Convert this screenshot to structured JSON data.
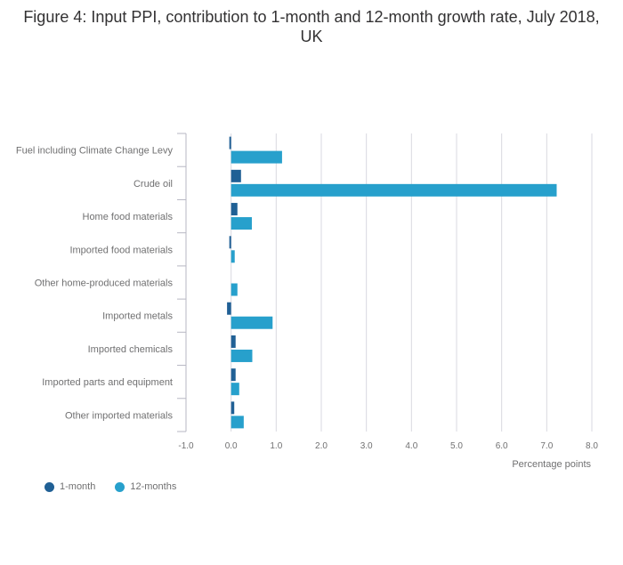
{
  "title": "Figure 4: Input PPI, contribution to 1-month and 12-month growth rate, July 2018, UK",
  "chart_data": {
    "type": "bar",
    "orientation": "horizontal",
    "categories": [
      "Fuel including Climate Change Levy",
      "Crude oil",
      "Home food materials",
      "Imported food materials",
      "Other home-produced materials",
      "Imported metals",
      "Imported chemicals",
      "Imported parts and equipment",
      "Other imported materials"
    ],
    "series": [
      {
        "name": "1-month",
        "color": "#206095",
        "values": [
          -0.03,
          0.22,
          0.14,
          -0.03,
          0.0,
          -0.09,
          0.1,
          0.1,
          0.07
        ]
      },
      {
        "name": "12-months",
        "color": "#27a0cc",
        "values": [
          1.13,
          7.22,
          0.46,
          0.08,
          0.14,
          0.92,
          0.47,
          0.18,
          0.28
        ]
      }
    ],
    "xlim": [
      -1.0,
      8.0
    ],
    "xticks": [
      "-1.0",
      "0.0",
      "1.0",
      "2.0",
      "3.0",
      "4.0",
      "5.0",
      "6.0",
      "7.0",
      "8.0"
    ],
    "xlabel": "Percentage points",
    "grid": true,
    "legend_position": "bottom-left"
  }
}
